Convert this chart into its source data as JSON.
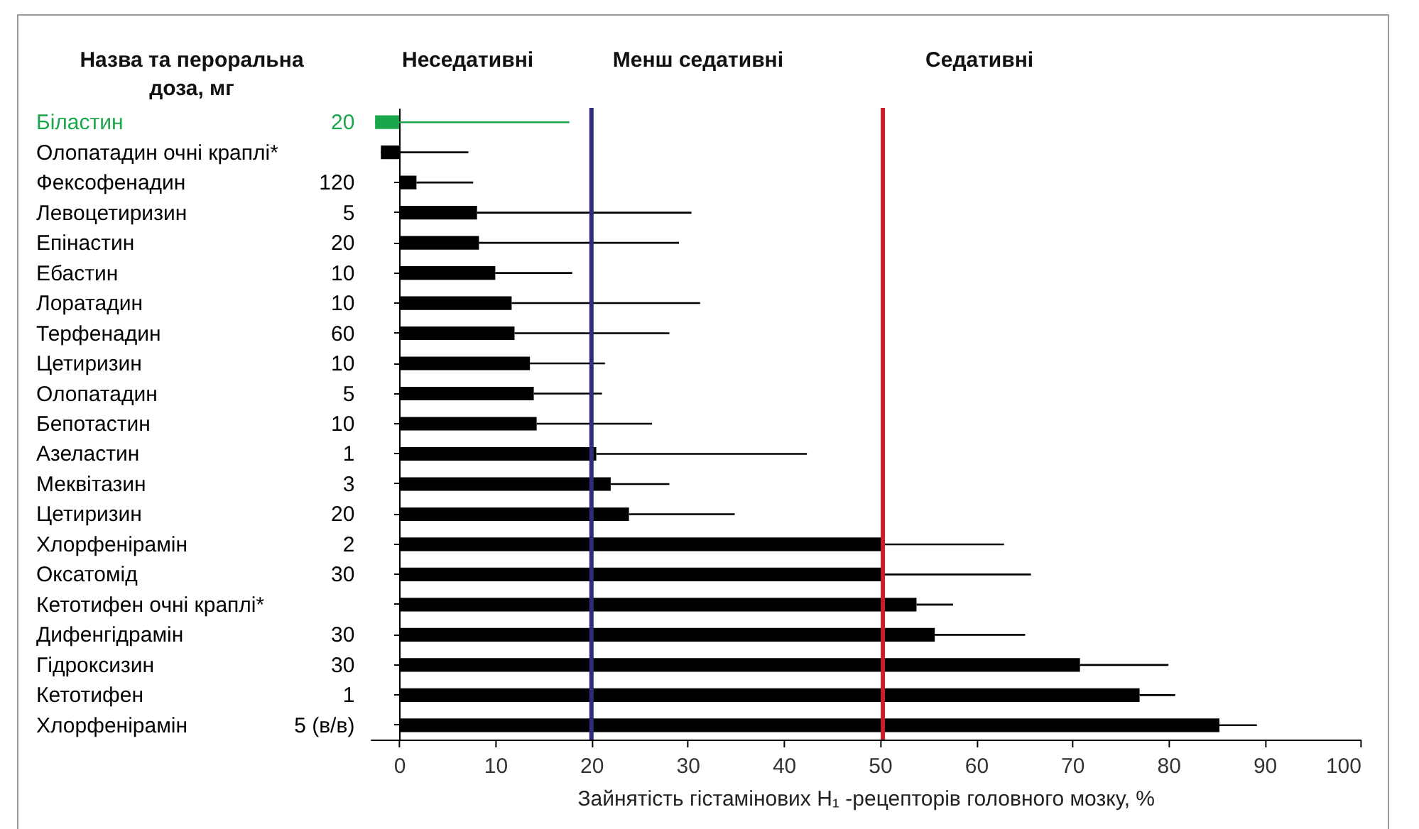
{
  "chart_data": {
    "type": "bar",
    "orientation": "horizontal",
    "categories": [
      "Біластин",
      "Олопатадин очні краплі*",
      "Фексофенадин",
      "Левоцетиризин",
      "Епінастин",
      "Ебастин",
      "Лоратадин",
      "Терфенадин",
      "Цетиризин",
      "Олопатадин",
      "Бепотастин",
      "Азеластин",
      "Меквітазин",
      "Цетиризин",
      "Хлорфенірамін",
      "Оксатомід",
      "Кетотифен очні краплі*",
      "Дифенгідрамін",
      "Гідроксизин",
      "Кетотифен",
      "Хлорфенірамін"
    ],
    "y2_categories": [
      "20",
      null,
      "120",
      "5",
      "20",
      "10",
      "10",
      "60",
      "10",
      "5",
      "10",
      "1",
      "3",
      "20",
      "2",
      "30",
      null,
      "30",
      "30",
      "1",
      "5 (в/в)"
    ],
    "values": [
      -2.5,
      -1.9,
      1.8,
      8.1,
      8.3,
      10.0,
      11.7,
      12.0,
      13.6,
      14.0,
      14.3,
      20.5,
      22.0,
      23.9,
      50.3,
      50.5,
      53.8,
      55.7,
      70.8,
      77.0,
      85.3
    ],
    "errors": [
      [
        -2.5,
        17.7
      ],
      [
        -1.9,
        7.2
      ],
      [
        1.8,
        7.7
      ],
      [
        8.1,
        30.4
      ],
      [
        8.3,
        29.1
      ],
      [
        10.0,
        18.0
      ],
      [
        11.7,
        31.3
      ],
      [
        12.0,
        28.1
      ],
      [
        13.6,
        21.4
      ],
      [
        14.0,
        21.1
      ],
      [
        14.3,
        26.3
      ],
      [
        20.5,
        42.4
      ],
      [
        22.0,
        28.1
      ],
      [
        23.9,
        34.9
      ],
      [
        50.3,
        62.9
      ],
      [
        50.5,
        65.7
      ],
      [
        53.8,
        57.6
      ],
      [
        55.7,
        65.1
      ],
      [
        70.8,
        80.0
      ],
      [
        77.0,
        80.7
      ],
      [
        85.3,
        89.2
      ]
    ],
    "colors": [
      "#1aa64a",
      "#000000",
      "#000000",
      "#000000",
      "#000000",
      "#000000",
      "#000000",
      "#000000",
      "#000000",
      "#000000",
      "#000000",
      "#000000",
      "#000000",
      "#000000",
      "#000000",
      "#000000",
      "#000000",
      "#000000",
      "#000000",
      "#000000",
      "#000000"
    ],
    "xlabel": "Зайнятість гістамінових H₁ -рецепторів головного мозку, %",
    "xlim": [
      -3,
      100
    ],
    "xticks": [
      0,
      10,
      20,
      30,
      40,
      50,
      60,
      70,
      80,
      90,
      100
    ],
    "ref_lines": [
      {
        "axis": "x",
        "value": 20,
        "color": "#2e2b80"
      },
      {
        "axis": "x",
        "value": 50.3,
        "color": "#c8202a"
      }
    ],
    "annotations": [
      "Назва та пероральна доза, мг",
      "Неседативні",
      "Менш седативні",
      "Седативні"
    ]
  }
}
